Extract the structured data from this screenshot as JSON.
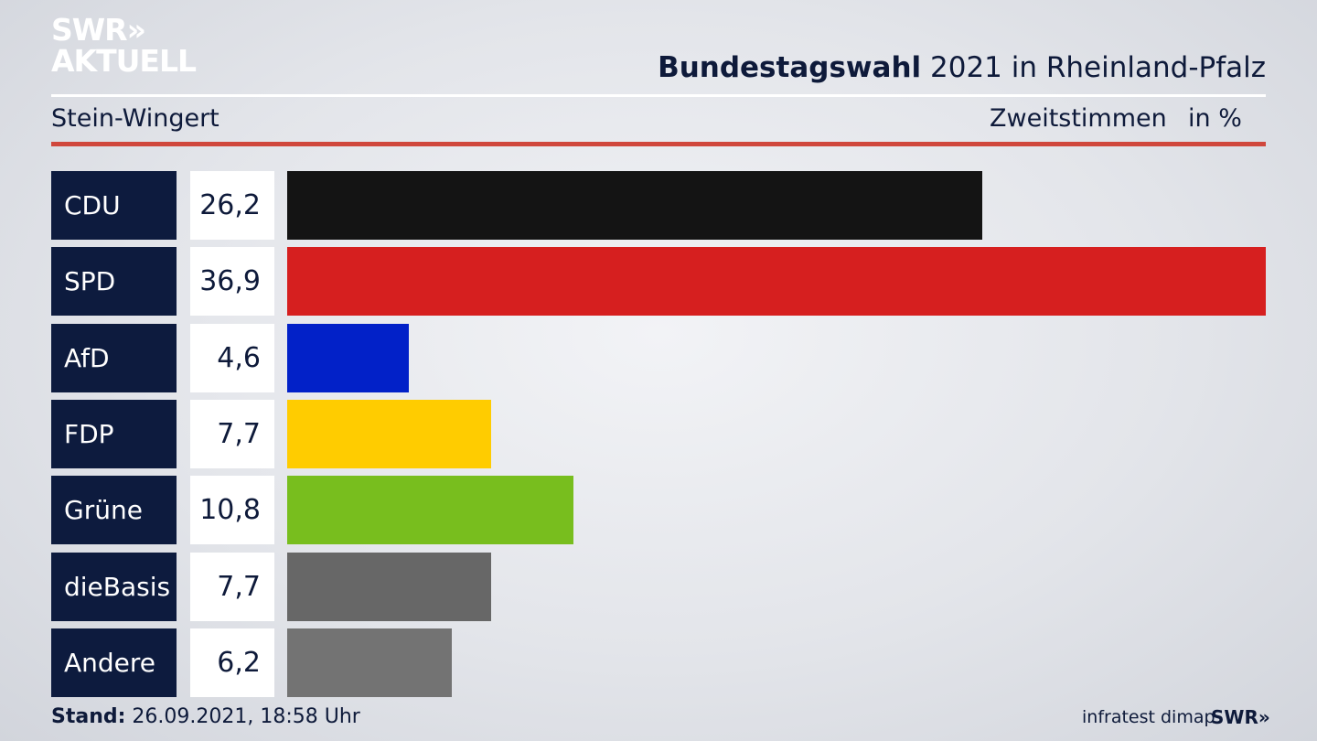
{
  "brand": {
    "line1": "SWR»",
    "line2": "AKTUELL"
  },
  "header": {
    "title_bold": "Bundestagswahl",
    "title_rest": " 2021 in Rheinland-Pfalz"
  },
  "subheader": {
    "region": "Stein-Wingert",
    "metric": "Zweitstimmen",
    "unit": "in %"
  },
  "footer": {
    "stand_label": "Stand:",
    "stand_value": " 26.09.2021, 18:58 Uhr",
    "source": "infratest dimap",
    "logo": "SWR»"
  },
  "chart_data": {
    "type": "bar",
    "orientation": "horizontal",
    "categories": [
      "CDU",
      "SPD",
      "AfD",
      "FDP",
      "Grüne",
      "dieBasis",
      "Andere"
    ],
    "values": [
      26.2,
      36.9,
      4.6,
      7.7,
      10.8,
      7.7,
      6.2
    ],
    "labels": [
      "26,2",
      "36,9",
      "4,6",
      "7,7",
      "10,8",
      "7,7",
      "6,2"
    ],
    "colors": [
      "#141414",
      "#d61f1f",
      "#0221c8",
      "#ffcc00",
      "#78be1e",
      "#676767",
      "#737373"
    ],
    "xlim": [
      0,
      36.9
    ]
  }
}
